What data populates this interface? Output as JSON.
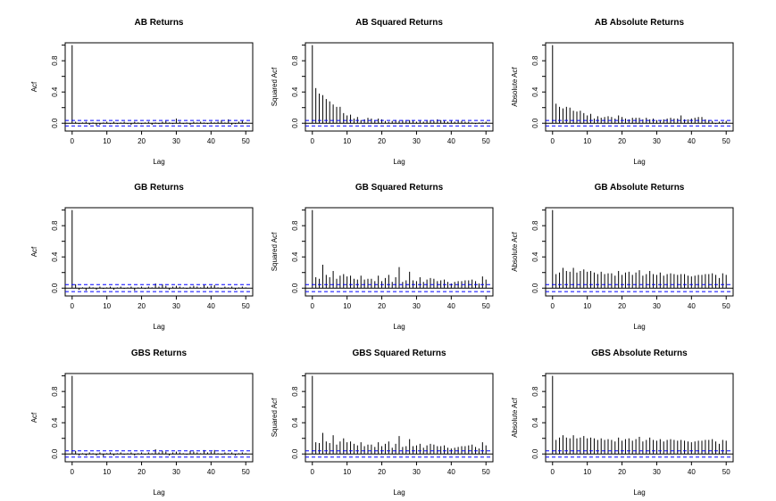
{
  "x_ticks": [
    0,
    10,
    20,
    30,
    40,
    50
  ],
  "y_ticks": [
    0.0,
    0.2,
    0.4,
    0.6,
    0.8,
    1.0
  ],
  "y_tick_labels": [
    "0.0",
    "",
    "0.4",
    "",
    "0.8",
    ""
  ],
  "colors": {
    "bars": "#000000",
    "ci": "#0000ff",
    "frame": "#000000"
  },
  "chart_data": [
    {
      "type": "bar",
      "title": "AB Returns",
      "xlabel": "Lag",
      "ylabel": "Acf",
      "xlim": [
        -2,
        52
      ],
      "ylim": [
        -0.1,
        1.03
      ],
      "ci": 0.035,
      "values": [
        1,
        0.02,
        -0.01,
        0.01,
        0.02,
        -0.02,
        0.01,
        -0.03,
        -0.02,
        0.01,
        0.02,
        -0.01,
        0.02,
        -0.01,
        0.01,
        0.02,
        -0.01,
        -0.02,
        0.02,
        0.01,
        -0.01,
        0.01,
        0.02,
        -0.02,
        0.01,
        -0.01,
        0.02,
        0.03,
        0.01,
        -0.01,
        0.06,
        0.02,
        -0.01,
        0.01,
        -0.02,
        0.02,
        0.01,
        0.02,
        0.01,
        -0.01,
        0.02,
        0.01,
        0.02,
        0.04,
        0.01,
        0.05,
        -0.02,
        -0.01,
        0.02,
        0.03,
        0.01
      ]
    },
    {
      "type": "bar",
      "title": "AB Squared Returns",
      "xlabel": "Lag",
      "ylabel": "Squared Acf",
      "xlim": [
        -2,
        52
      ],
      "ylim": [
        -0.1,
        1.03
      ],
      "ci": 0.035,
      "values": [
        1,
        0.45,
        0.38,
        0.36,
        0.31,
        0.28,
        0.24,
        0.21,
        0.21,
        0.13,
        0.1,
        0.11,
        0.06,
        0.08,
        0.04,
        0.05,
        0.07,
        0.06,
        0.04,
        0.06,
        0.05,
        0.03,
        0.02,
        0.03,
        0.04,
        0.03,
        0.04,
        0.03,
        0.04,
        0.03,
        0.02,
        0.03,
        0.02,
        0.03,
        0.04,
        0.03,
        0.05,
        0.04,
        0.03,
        0.02,
        0.03,
        0.02,
        0.03,
        0.03,
        0.02,
        0.02,
        0.01,
        -0.01,
        0.01,
        0.01,
        0.02
      ]
    },
    {
      "type": "bar",
      "title": "AB Absolute Returns",
      "xlabel": "Lag",
      "ylabel": "Absolute Acf",
      "xlim": [
        -2,
        52
      ],
      "ylim": [
        -0.1,
        1.03
      ],
      "ci": 0.035,
      "values": [
        1,
        0.25,
        0.21,
        0.19,
        0.21,
        0.2,
        0.16,
        0.15,
        0.16,
        0.13,
        0.1,
        0.12,
        0.06,
        0.09,
        0.07,
        0.08,
        0.09,
        0.08,
        0.06,
        0.1,
        0.08,
        0.06,
        0.05,
        0.07,
        0.07,
        0.07,
        0.05,
        0.07,
        0.05,
        0.06,
        0.04,
        0.04,
        0.05,
        0.06,
        0.07,
        0.06,
        0.06,
        0.1,
        0.05,
        0.05,
        0.06,
        0.07,
        0.08,
        0.08,
        0.05,
        0.04,
        0.03,
        -0.01,
        0.02,
        0.02,
        0.03
      ]
    },
    {
      "type": "bar",
      "title": "GB Returns",
      "xlabel": "Lag",
      "ylabel": "Acf",
      "xlim": [
        -2,
        52
      ],
      "ylim": [
        -0.1,
        1.03
      ],
      "ci": 0.045,
      "values": [
        1,
        0.05,
        -0.02,
        0.01,
        -0.03,
        0.02,
        0.01,
        -0.02,
        0.02,
        -0.01,
        0.01,
        0.02,
        -0.02,
        0.01,
        0.02,
        -0.01,
        0.01,
        0.02,
        -0.03,
        0.01,
        0.02,
        -0.01,
        0.02,
        0.01,
        0.06,
        0.02,
        0.05,
        0.03,
        -0.02,
        0.02,
        0.03,
        0.02,
        0.01,
        -0.01,
        0.02,
        0.03,
        0.02,
        0.01,
        0.04,
        0.02,
        0.03,
        0.04,
        0.01,
        -0.01,
        0.02,
        0.01,
        0.02,
        -0.02,
        0.01,
        0.02,
        0.01
      ]
    },
    {
      "type": "bar",
      "title": "GB Squared Returns",
      "xlabel": "Lag",
      "ylabel": "Squared Acf",
      "xlim": [
        -2,
        52
      ],
      "ylim": [
        -0.1,
        1.03
      ],
      "ci": 0.045,
      "values": [
        1,
        0.14,
        0.12,
        0.3,
        0.17,
        0.14,
        0.22,
        0.12,
        0.16,
        0.18,
        0.15,
        0.16,
        0.12,
        0.11,
        0.16,
        0.11,
        0.12,
        0.12,
        0.09,
        0.16,
        0.09,
        0.13,
        0.17,
        0.08,
        0.14,
        0.27,
        0.08,
        0.1,
        0.21,
        0.1,
        0.09,
        0.14,
        0.08,
        0.11,
        0.13,
        0.12,
        0.09,
        0.1,
        0.11,
        0.08,
        0.06,
        0.08,
        0.09,
        0.09,
        0.1,
        0.1,
        0.11,
        0.09,
        0.06,
        0.15,
        0.11
      ]
    },
    {
      "type": "bar",
      "title": "GB Absolute Returns",
      "xlabel": "Lag",
      "ylabel": "Absolute Acf",
      "xlim": [
        -2,
        52
      ],
      "ylim": [
        -0.1,
        1.03
      ],
      "ci": 0.045,
      "values": [
        1,
        0.18,
        0.2,
        0.26,
        0.22,
        0.21,
        0.26,
        0.2,
        0.22,
        0.24,
        0.21,
        0.22,
        0.2,
        0.18,
        0.21,
        0.18,
        0.19,
        0.19,
        0.16,
        0.22,
        0.17,
        0.2,
        0.21,
        0.17,
        0.2,
        0.23,
        0.16,
        0.18,
        0.22,
        0.18,
        0.17,
        0.2,
        0.16,
        0.18,
        0.19,
        0.18,
        0.17,
        0.18,
        0.18,
        0.16,
        0.15,
        0.16,
        0.17,
        0.17,
        0.18,
        0.18,
        0.19,
        0.17,
        0.13,
        0.19,
        0.17
      ]
    },
    {
      "type": "bar",
      "title": "GBS Returns",
      "xlabel": "Lag",
      "ylabel": "Acf",
      "xlim": [
        -2,
        52
      ],
      "ylim": [
        -0.1,
        1.03
      ],
      "ci": 0.04,
      "values": [
        1,
        0.04,
        -0.02,
        0.01,
        -0.02,
        0.02,
        0.01,
        -0.02,
        0.02,
        -0.03,
        0.01,
        0.02,
        -0.02,
        0.01,
        0.02,
        -0.01,
        0.01,
        0.02,
        -0.02,
        0.01,
        0.02,
        -0.01,
        0.02,
        0.01,
        0.06,
        0.02,
        0.04,
        0.03,
        -0.02,
        0.02,
        0.03,
        0.02,
        0.01,
        -0.01,
        0.04,
        0.03,
        0.02,
        0.01,
        0.05,
        0.02,
        0.03,
        0.05,
        0.01,
        -0.01,
        0.02,
        0.01,
        0.02,
        -0.02,
        0.01,
        0.02,
        0.01
      ]
    },
    {
      "type": "bar",
      "title": "GBS Squared Returns",
      "xlabel": "Lag",
      "ylabel": "Squared Acf",
      "xlim": [
        -2,
        52
      ],
      "ylim": [
        -0.1,
        1.03
      ],
      "ci": 0.04,
      "values": [
        1,
        0.15,
        0.14,
        0.27,
        0.16,
        0.14,
        0.24,
        0.12,
        0.16,
        0.2,
        0.15,
        0.16,
        0.13,
        0.11,
        0.15,
        0.1,
        0.12,
        0.12,
        0.09,
        0.15,
        0.1,
        0.13,
        0.16,
        0.08,
        0.13,
        0.23,
        0.09,
        0.1,
        0.19,
        0.1,
        0.11,
        0.13,
        0.08,
        0.11,
        0.13,
        0.12,
        0.1,
        0.1,
        0.11,
        0.08,
        0.07,
        0.08,
        0.09,
        0.1,
        0.1,
        0.11,
        0.12,
        0.09,
        0.07,
        0.15,
        0.11
      ]
    },
    {
      "type": "bar",
      "title": "GBS Absolute Returns",
      "xlabel": "Lag",
      "ylabel": "Absolute Acf",
      "xlim": [
        -2,
        52
      ],
      "ylim": [
        -0.1,
        1.03
      ],
      "ci": 0.04,
      "values": [
        1,
        0.18,
        0.21,
        0.24,
        0.21,
        0.2,
        0.24,
        0.2,
        0.21,
        0.23,
        0.2,
        0.21,
        0.2,
        0.18,
        0.2,
        0.18,
        0.19,
        0.18,
        0.16,
        0.21,
        0.17,
        0.19,
        0.2,
        0.17,
        0.19,
        0.22,
        0.16,
        0.18,
        0.21,
        0.18,
        0.17,
        0.19,
        0.16,
        0.18,
        0.19,
        0.18,
        0.17,
        0.18,
        0.17,
        0.16,
        0.15,
        0.16,
        0.17,
        0.17,
        0.18,
        0.18,
        0.19,
        0.16,
        0.13,
        0.18,
        0.17
      ]
    }
  ]
}
